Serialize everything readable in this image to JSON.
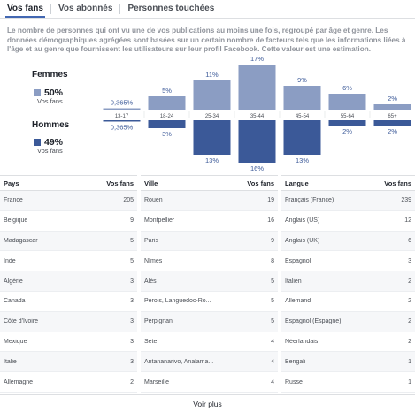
{
  "tabs": [
    {
      "label": "Vos fans",
      "active": true
    },
    {
      "label": "Vos abonnés",
      "active": false
    },
    {
      "label": "Personnes touchées",
      "active": false
    }
  ],
  "description": "Le nombre de personnes qui ont vu une de vos publications au moins une fois, regroupé par âge et genre. Les données démographiques agrégées sont basées sur un certain nombre de facteurs tels que les informations liées à l'âge et au genre que fournissent les utilisateurs sur leur profil Facebook. Cette valeur est une estimation.",
  "gender": {
    "women": {
      "label": "Femmes",
      "percent": "50%",
      "sub": "Vos fans",
      "color": "#8b9dc3"
    },
    "men": {
      "label": "Hommes",
      "percent": "49%",
      "sub": "Vos fans",
      "color": "#3b5998"
    }
  },
  "chart_data": {
    "type": "bar",
    "categories": [
      "13-17",
      "18-24",
      "25-34",
      "35-44",
      "45-54",
      "55-64",
      "65+"
    ],
    "series": [
      {
        "name": "Femmes",
        "values": [
          0.365,
          5,
          11,
          17,
          9,
          6,
          2
        ],
        "labels": [
          "0,365%",
          "5%",
          "11%",
          "17%",
          "9%",
          "6%",
          "2%"
        ],
        "color": "#8b9dc3"
      },
      {
        "name": "Hommes",
        "values": [
          0.365,
          3,
          13,
          16,
          13,
          2,
          2
        ],
        "labels": [
          "0,365%",
          "3%",
          "13%",
          "16%",
          "13%",
          "2%",
          "2%"
        ],
        "color": "#3b5998"
      }
    ]
  },
  "tables": [
    {
      "header": {
        "name": "Pays",
        "value": "Vos fans"
      },
      "rows": [
        {
          "name": "France",
          "value": "205"
        },
        {
          "name": "Belgique",
          "value": "9"
        },
        {
          "name": "Madagascar",
          "value": "5"
        },
        {
          "name": "Inde",
          "value": "5"
        },
        {
          "name": "Algérie",
          "value": "3"
        },
        {
          "name": "Canada",
          "value": "3"
        },
        {
          "name": "Côte d'Ivoire",
          "value": "3"
        },
        {
          "name": "Mexique",
          "value": "3"
        },
        {
          "name": "Italie",
          "value": "3"
        },
        {
          "name": "Allemagne",
          "value": "2"
        }
      ]
    },
    {
      "header": {
        "name": "Ville",
        "value": "Vos fans"
      },
      "rows": [
        {
          "name": "Rouen",
          "value": "19"
        },
        {
          "name": "Montpellier",
          "value": "16"
        },
        {
          "name": "Paris",
          "value": "9"
        },
        {
          "name": "Nîmes",
          "value": "8"
        },
        {
          "name": "Alès",
          "value": "5"
        },
        {
          "name": "Pérols, Languedoc-Ro...",
          "value": "5"
        },
        {
          "name": "Perpignan",
          "value": "5"
        },
        {
          "name": "Sète",
          "value": "4"
        },
        {
          "name": "Antananarivo, Analama...",
          "value": "4"
        },
        {
          "name": "Marseille",
          "value": "4"
        }
      ]
    },
    {
      "header": {
        "name": "Langue",
        "value": "Vos fans"
      },
      "rows": [
        {
          "name": "Français (France)",
          "value": "239"
        },
        {
          "name": "Anglais (US)",
          "value": "12"
        },
        {
          "name": "Anglais (UK)",
          "value": "6"
        },
        {
          "name": "Espagnol",
          "value": "3"
        },
        {
          "name": "Italien",
          "value": "2"
        },
        {
          "name": "Allemand",
          "value": "2"
        },
        {
          "name": "Espagnol (Espagne)",
          "value": "2"
        },
        {
          "name": "Néerlandais",
          "value": "2"
        },
        {
          "name": "Bengali",
          "value": "1"
        },
        {
          "name": "Russe",
          "value": "1"
        }
      ]
    }
  ],
  "see_more": "Voir plus"
}
